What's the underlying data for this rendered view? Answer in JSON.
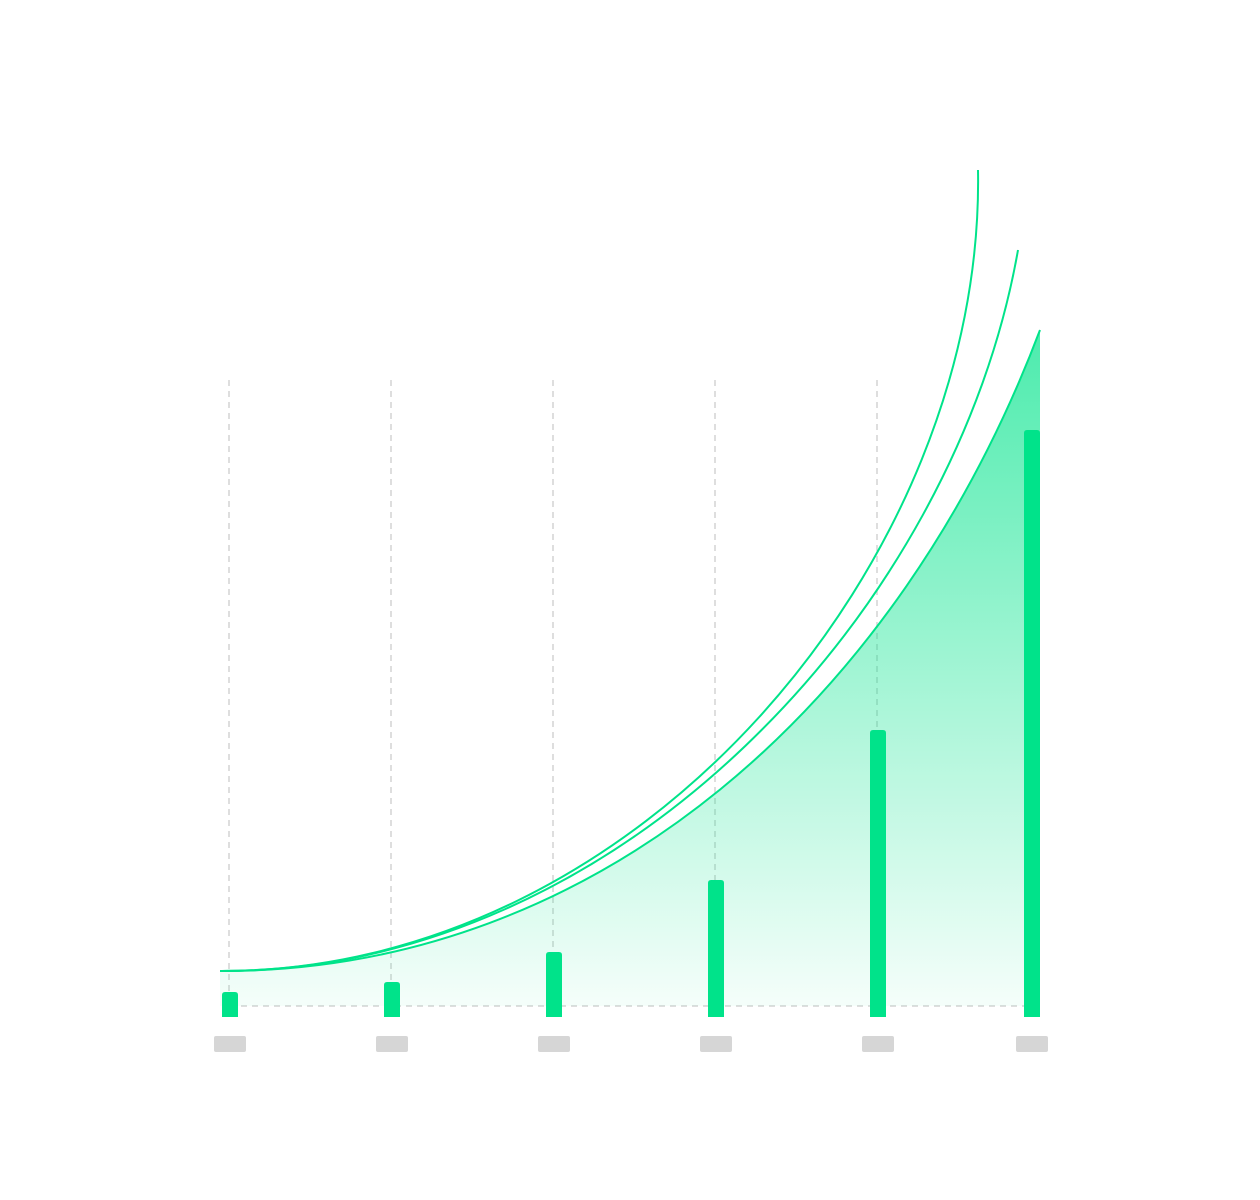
{
  "chart_data": {
    "type": "bar",
    "values": [
      25,
      35,
      65,
      137,
      287,
      587
    ],
    "color": "#00e38a",
    "ylim": [
      0,
      700
    ]
  }
}
